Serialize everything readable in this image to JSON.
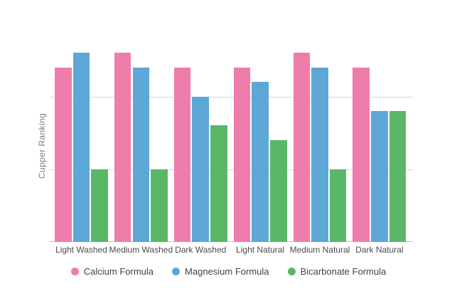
{
  "chart_data": {
    "type": "bar",
    "title": "",
    "xlabel": "",
    "ylabel": "Cupper Ranking",
    "categories": [
      "Light Washed",
      "Medium Washed",
      "Dark Washed",
      "Light Natural",
      "Medium Natural",
      "Dark Natural"
    ],
    "series": [
      {
        "name": "Calcium Formula",
        "color": "#ef7dab",
        "values": [
          12,
          13,
          12,
          12,
          13,
          12
        ]
      },
      {
        "name": "Magnesium Formula",
        "color": "#5da7d7",
        "values": [
          13,
          12,
          10,
          11,
          12,
          9
        ]
      },
      {
        "name": "Bicarbonate Formula",
        "color": "#5bb768",
        "values": [
          5,
          5,
          8,
          7,
          5,
          9
        ]
      }
    ],
    "ylim": [
      0,
      15.2
    ],
    "y_gridlines_at": [
      5,
      10
    ],
    "y_tick_labels_visible": false,
    "grid": "horizontal",
    "legend_position": "bottom",
    "background_color": "#ffffff",
    "gridline_color": "#d6d6d6",
    "axis_line_color": "#c2c2c2",
    "label_color": "#4b4b4b"
  }
}
